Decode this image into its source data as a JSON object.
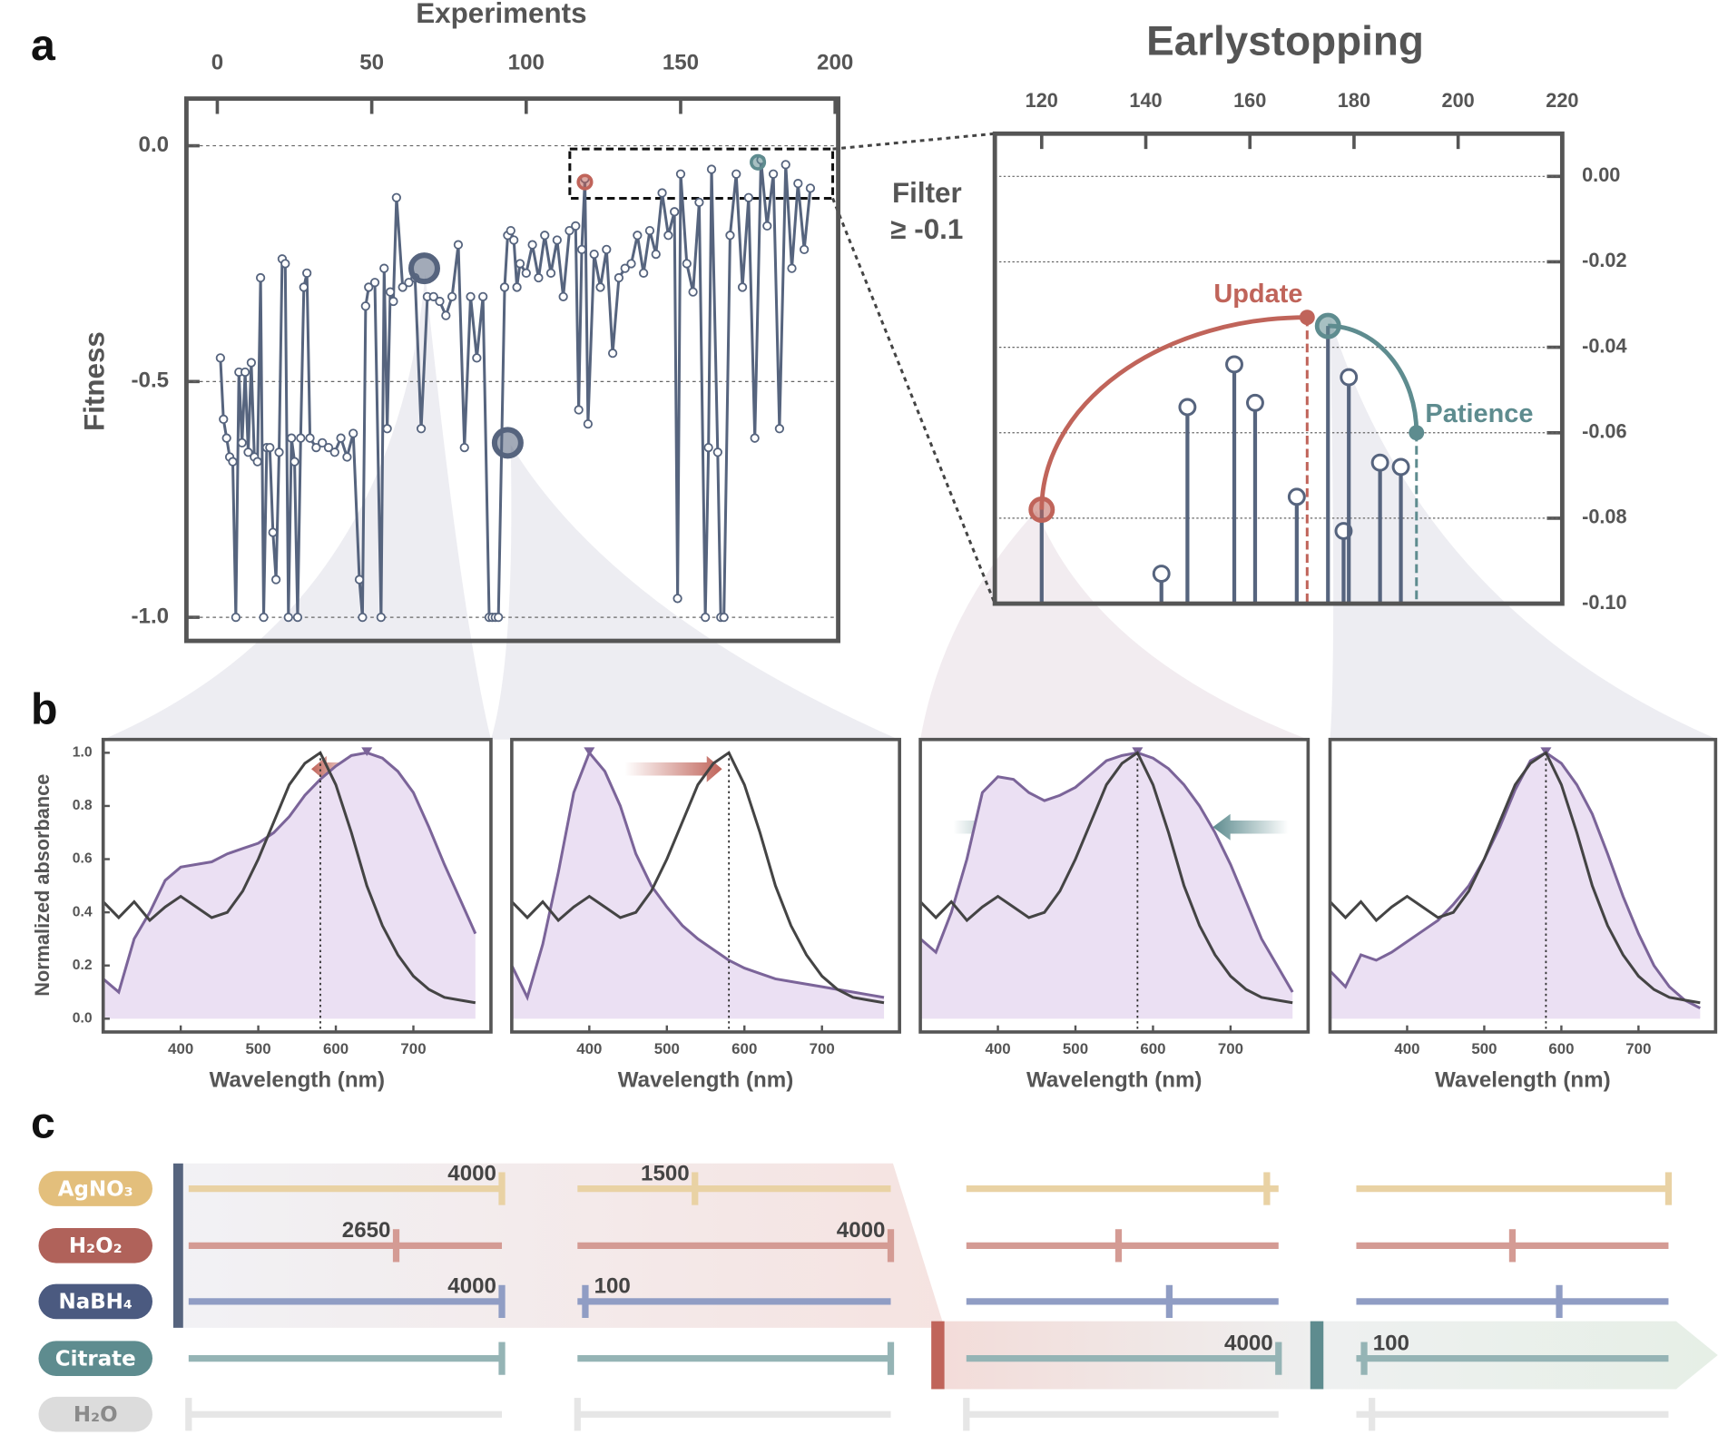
{
  "panel_labels": [
    "a",
    "b",
    "c"
  ],
  "chart_data": [
    {
      "type": "line",
      "x_label": "Experiments",
      "y_label": "Fitness",
      "color": "#56647e",
      "x": [
        1,
        2,
        3,
        4,
        5,
        6,
        7,
        8,
        9,
        10,
        11,
        12,
        13,
        14,
        15,
        16,
        17,
        18,
        19,
        20,
        21,
        22,
        23,
        24,
        25,
        26,
        27,
        28,
        29,
        30,
        32,
        34,
        36,
        38,
        40,
        42,
        44,
        46,
        47,
        48,
        49,
        51,
        53,
        54,
        55,
        56,
        57,
        58,
        60,
        62,
        64,
        66,
        68,
        70,
        72,
        74,
        76,
        78,
        80,
        82,
        84,
        86,
        88,
        89,
        90,
        91,
        93,
        94,
        95,
        96,
        97,
        98,
        100,
        102,
        104,
        106,
        108,
        110,
        112,
        114,
        116,
        117,
        118,
        119,
        120,
        122,
        124,
        126,
        128,
        130,
        132,
        134,
        136,
        138,
        140,
        142,
        144,
        146,
        148,
        149,
        150,
        152,
        154,
        156,
        158,
        159,
        160,
        162,
        163,
        164,
        166,
        168,
        170,
        172,
        174,
        176,
        178,
        180,
        182,
        184,
        186,
        188,
        190,
        192
      ],
      "values": [
        -0.45,
        -0.58,
        -0.62,
        -0.66,
        -0.67,
        -1.0,
        -0.48,
        -0.63,
        -0.48,
        -0.65,
        -0.46,
        -0.66,
        -0.67,
        -0.28,
        -1.0,
        -0.64,
        -0.64,
        -0.82,
        -0.92,
        -0.65,
        -0.24,
        -0.25,
        -1.0,
        -0.62,
        -0.67,
        -1.0,
        -0.62,
        -0.3,
        -0.27,
        -0.62,
        -0.64,
        -0.63,
        -0.64,
        -0.65,
        -0.62,
        -0.66,
        -0.61,
        -0.92,
        -1.0,
        -0.34,
        -0.3,
        -0.29,
        -1.0,
        -0.26,
        -0.6,
        -0.31,
        -0.33,
        -0.11,
        -0.3,
        -0.29,
        -0.28,
        -0.6,
        -0.32,
        -0.32,
        -0.33,
        -0.36,
        -0.32,
        -0.21,
        -0.64,
        -0.32,
        -0.45,
        -0.32,
        -1.0,
        -1.0,
        -1.0,
        -1.0,
        -0.3,
        -0.19,
        -0.18,
        -0.2,
        -0.3,
        -0.25,
        -0.27,
        -0.21,
        -0.28,
        -0.19,
        -0.27,
        -0.2,
        -0.32,
        -0.18,
        -0.17,
        -0.56,
        -0.22,
        -0.07,
        -0.59,
        -0.23,
        -0.3,
        -0.22,
        -0.44,
        -0.28,
        -0.26,
        -0.25,
        -0.19,
        -0.27,
        -0.18,
        -0.23,
        -0.1,
        -0.19,
        -0.14,
        -0.96,
        -0.06,
        -0.25,
        -0.31,
        -0.12,
        -1.0,
        -0.64,
        -0.05,
        -0.65,
        -1.0,
        -1.0,
        -0.19,
        -0.06,
        -0.3,
        -0.11,
        -0.62,
        -0.03,
        -0.17,
        -0.06,
        -0.6,
        -0.04,
        -0.26,
        -0.08,
        -0.22,
        -0.09
      ],
      "highlights": {
        "x": [
          67,
          94,
          119,
          175
        ],
        "values": [
          -0.26,
          -0.63,
          -0.077,
          -0.035
        ],
        "colors": [
          "#56647e",
          "#56647e",
          "#c0645a",
          "#5e8c8f"
        ]
      },
      "xlim": [
        -10,
        201
      ],
      "ylim": [
        -1.05,
        0.1
      ],
      "xticks": [
        0,
        50,
        100,
        150,
        200
      ],
      "yticks": [
        {
          "value": 0,
          "label": "0.0"
        },
        {
          "value": -0.5,
          "label": "-0.5"
        },
        {
          "value": -1,
          "label": "-1.0"
        }
      ],
      "grid": true
    },
    {
      "type": "stem",
      "title": "Earlystopping",
      "filter_label": [
        "Filter",
        "≥ -0.1"
      ],
      "color": "#56647e",
      "x": [
        120,
        143,
        148,
        157,
        161,
        169,
        175,
        178,
        179,
        185,
        189
      ],
      "values": [
        -0.078,
        -0.093,
        -0.054,
        -0.044,
        -0.053,
        -0.075,
        -0.035,
        -0.083,
        -0.047,
        -0.067,
        -0.068
      ],
      "update": {
        "label": "Update",
        "x": 171,
        "y": -0.033,
        "color": "#c0645a"
      },
      "patience": {
        "label": "Patience",
        "x": 192,
        "y": -0.06,
        "color": "#5e8c8f"
      },
      "xlim": [
        111,
        220
      ],
      "ylim": [
        -0.1,
        0.01
      ],
      "xticks": [
        120,
        140,
        160,
        180,
        200,
        220
      ],
      "yticks": [
        {
          "value": 0,
          "label": "0.00"
        },
        {
          "value": -0.02,
          "label": "-0.02"
        },
        {
          "value": -0.04,
          "label": "-0.04"
        },
        {
          "value": -0.06,
          "label": "-0.06"
        },
        {
          "value": -0.08,
          "label": "-0.08"
        },
        {
          "value": -0.1,
          "label": "-0.10"
        }
      ],
      "grid": true
    },
    {
      "type": "spectrum",
      "x_label": "Wavelength (nm)",
      "y_label": "Normalized absorbance",
      "x": [
        300,
        320,
        340,
        360,
        380,
        400,
        420,
        440,
        460,
        480,
        500,
        520,
        540,
        560,
        580,
        600,
        620,
        640,
        660,
        680,
        700,
        720,
        740,
        760,
        780
      ],
      "series": [
        {
          "color": "#7b6499",
          "fill": "#ebe0f3",
          "values": [
            0.15,
            0.1,
            0.3,
            0.4,
            0.52,
            0.57,
            0.58,
            0.59,
            0.62,
            0.64,
            0.66,
            0.7,
            0.76,
            0.84,
            0.9,
            0.95,
            0.99,
            1.0,
            0.98,
            0.93,
            0.85,
            0.72,
            0.58,
            0.45,
            0.32
          ]
        },
        {
          "color": "#444444",
          "values": [
            0.44,
            0.38,
            0.44,
            0.37,
            0.42,
            0.46,
            0.42,
            0.38,
            0.4,
            0.48,
            0.6,
            0.74,
            0.88,
            0.96,
            1.0,
            0.88,
            0.7,
            0.5,
            0.35,
            0.24,
            0.16,
            0.11,
            0.08,
            0.07,
            0.06
          ]
        }
      ],
      "xlim": [
        300,
        800
      ],
      "ylim": [
        -0.05,
        1.05
      ],
      "xticks": [
        400,
        500,
        600,
        700
      ],
      "yticks": [
        {
          "value": 0,
          "label": "0.0"
        },
        {
          "value": 0.2,
          "label": "0.2"
        },
        {
          "value": 0.4,
          "label": "0.4"
        },
        {
          "value": 0.6,
          "label": "0.6"
        },
        {
          "value": 0.8,
          "label": "0.8"
        },
        {
          "value": 1,
          "label": "1.0"
        }
      ]
    },
    {
      "type": "spectrum",
      "x_label": "Wavelength (nm)",
      "x": [
        300,
        320,
        340,
        360,
        380,
        400,
        420,
        440,
        460,
        480,
        500,
        520,
        540,
        560,
        580,
        600,
        620,
        640,
        660,
        680,
        700,
        720,
        740,
        760,
        780
      ],
      "series": [
        {
          "color": "#7b6499",
          "fill": "#ebe0f3",
          "values": [
            0.2,
            0.08,
            0.28,
            0.55,
            0.85,
            1.0,
            0.93,
            0.8,
            0.62,
            0.5,
            0.42,
            0.35,
            0.3,
            0.26,
            0.22,
            0.19,
            0.17,
            0.15,
            0.14,
            0.13,
            0.12,
            0.11,
            0.1,
            0.09,
            0.08
          ]
        },
        {
          "color": "#444444",
          "values": [
            0.44,
            0.38,
            0.44,
            0.37,
            0.42,
            0.46,
            0.42,
            0.38,
            0.4,
            0.48,
            0.6,
            0.74,
            0.88,
            0.96,
            1.0,
            0.88,
            0.7,
            0.5,
            0.35,
            0.24,
            0.16,
            0.11,
            0.08,
            0.07,
            0.06
          ]
        }
      ],
      "xlim": [
        300,
        800
      ],
      "ylim": [
        -0.05,
        1.05
      ],
      "xticks": [
        400,
        500,
        600,
        700
      ]
    },
    {
      "type": "spectrum",
      "x_label": "Wavelength (nm)",
      "x": [
        300,
        320,
        340,
        360,
        380,
        400,
        420,
        440,
        460,
        480,
        500,
        520,
        540,
        560,
        580,
        600,
        620,
        640,
        660,
        680,
        700,
        720,
        740,
        760,
        780
      ],
      "series": [
        {
          "color": "#7b6499",
          "fill": "#ebe0f3",
          "values": [
            0.3,
            0.25,
            0.4,
            0.6,
            0.85,
            0.91,
            0.9,
            0.85,
            0.82,
            0.84,
            0.87,
            0.92,
            0.97,
            0.99,
            1.0,
            0.98,
            0.94,
            0.88,
            0.8,
            0.7,
            0.58,
            0.44,
            0.3,
            0.2,
            0.1
          ]
        },
        {
          "color": "#444444",
          "values": [
            0.44,
            0.38,
            0.44,
            0.37,
            0.42,
            0.46,
            0.42,
            0.38,
            0.4,
            0.48,
            0.6,
            0.74,
            0.88,
            0.96,
            1.0,
            0.88,
            0.7,
            0.5,
            0.35,
            0.24,
            0.16,
            0.11,
            0.08,
            0.07,
            0.06
          ]
        }
      ],
      "xlim": [
        300,
        800
      ],
      "ylim": [
        -0.05,
        1.05
      ],
      "xticks": [
        400,
        500,
        600,
        700
      ]
    },
    {
      "type": "spectrum",
      "x_label": "Wavelength (nm)",
      "x": [
        300,
        320,
        340,
        360,
        380,
        400,
        420,
        440,
        460,
        480,
        500,
        520,
        540,
        560,
        580,
        600,
        620,
        640,
        660,
        680,
        700,
        720,
        740,
        760,
        780
      ],
      "series": [
        {
          "color": "#7b6499",
          "fill": "#ebe0f3",
          "values": [
            0.18,
            0.12,
            0.24,
            0.22,
            0.25,
            0.29,
            0.33,
            0.37,
            0.43,
            0.5,
            0.6,
            0.72,
            0.86,
            0.97,
            1.0,
            0.96,
            0.88,
            0.77,
            0.62,
            0.46,
            0.32,
            0.2,
            0.12,
            0.07,
            0.04
          ]
        },
        {
          "color": "#444444",
          "values": [
            0.44,
            0.38,
            0.44,
            0.37,
            0.42,
            0.46,
            0.42,
            0.38,
            0.4,
            0.48,
            0.6,
            0.74,
            0.88,
            0.96,
            1.0,
            0.88,
            0.7,
            0.5,
            0.35,
            0.24,
            0.16,
            0.11,
            0.08,
            0.07,
            0.06
          ]
        }
      ],
      "xlim": [
        300,
        800
      ],
      "ylim": [
        -0.05,
        1.05
      ],
      "xticks": [
        400,
        500,
        600,
        700
      ]
    }
  ],
  "panel_c": {
    "xlim": [
      0,
      4000
    ],
    "reagents": [
      {
        "name": "AgNO₃",
        "color": "#e3bf7c",
        "track": "#e9d2a4",
        "text_color": "#ffffff"
      },
      {
        "name": "H₂O₂",
        "color": "#b0625a",
        "track": "#d49b94",
        "text_color": "#ffffff"
      },
      {
        "name": "NaBH₄",
        "color": "#4b5a80",
        "track": "#909dc4",
        "text_color": "#ffffff"
      },
      {
        "name": "Citrate",
        "color": "#5e8c8f",
        "track": "#95b4b5",
        "text_color": "#ffffff"
      },
      {
        "name": "H₂O",
        "color": "#dcdcdc",
        "track": "#e6e6e6",
        "text_color": "#8a8a8a"
      }
    ],
    "columns": [
      {
        "values": [
          4000,
          2650,
          4000,
          4000,
          0
        ],
        "shown": [
          true,
          true,
          true,
          false,
          false
        ]
      },
      {
        "values": [
          1500,
          4000,
          100,
          4000,
          0
        ],
        "shown": [
          true,
          true,
          true,
          false,
          false
        ]
      },
      {
        "values": [
          3850,
          1950,
          2600,
          4000,
          0
        ],
        "shown": [
          false,
          false,
          false,
          true,
          false
        ]
      },
      {
        "values": [
          4000,
          2000,
          2600,
          100,
          200
        ],
        "shown": [
          false,
          false,
          false,
          true,
          false
        ]
      }
    ]
  }
}
